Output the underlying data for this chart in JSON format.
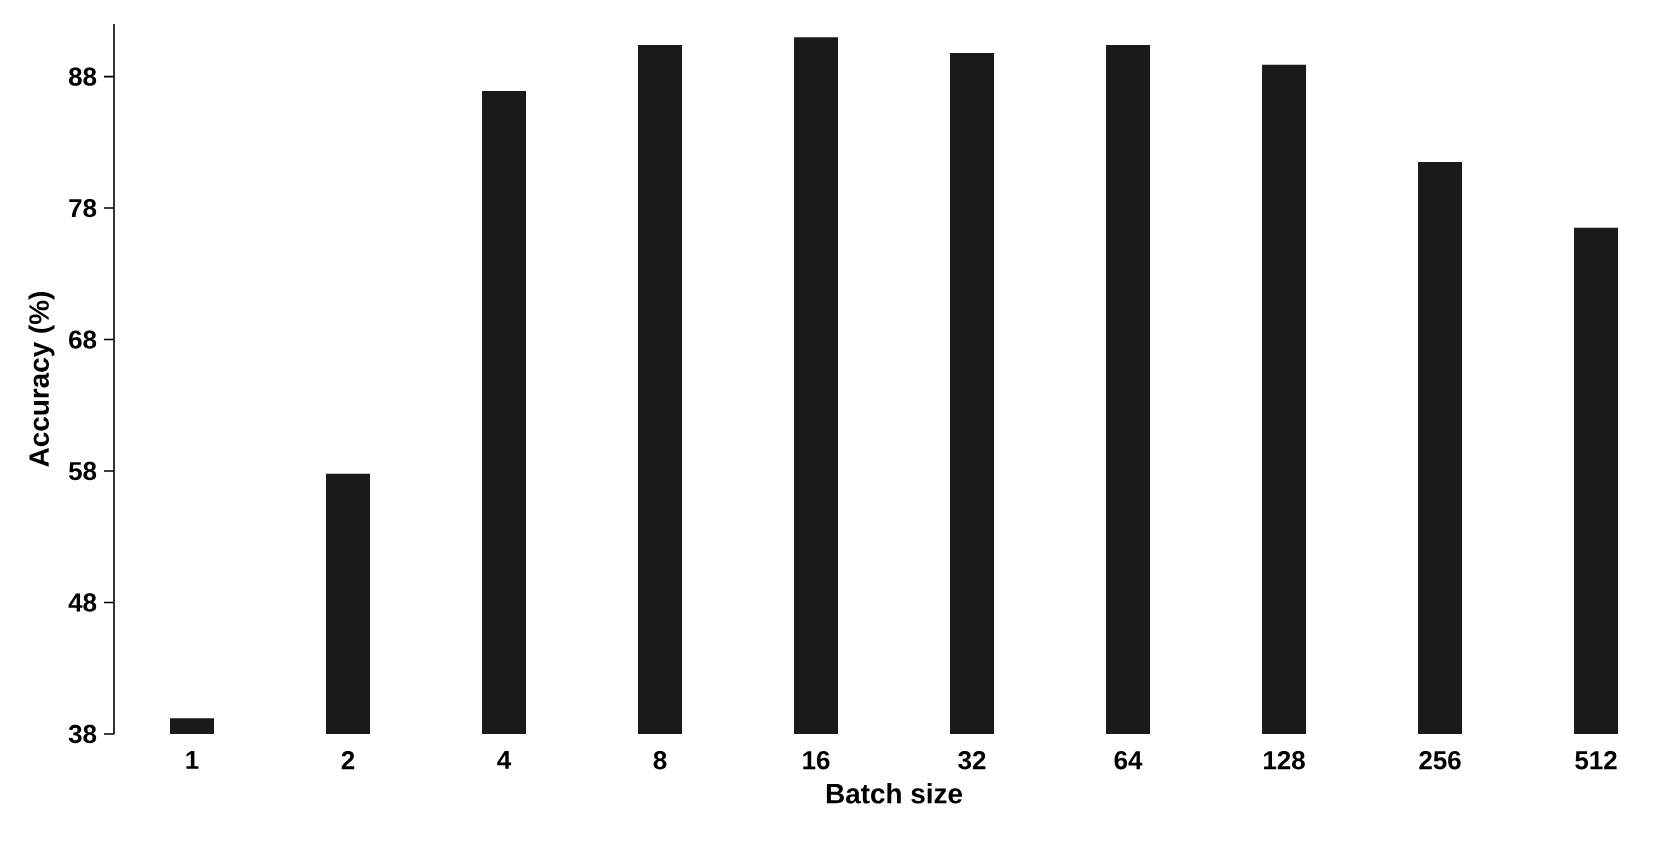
{
  "chart_data": {
    "type": "bar",
    "xlabel": "Batch size",
    "ylabel": "Accuracy (%)",
    "categories": [
      "1",
      "2",
      "4",
      "8",
      "16",
      "32",
      "64",
      "128",
      "256",
      "512"
    ],
    "values": [
      39.2,
      57.8,
      86.9,
      90.4,
      91.0,
      89.8,
      90.4,
      88.9,
      81.5,
      76.5
    ],
    "color": "#1a1a1a",
    "ylim": [
      38,
      92
    ],
    "yticks": [
      38,
      48,
      58,
      68,
      78,
      88
    ]
  }
}
